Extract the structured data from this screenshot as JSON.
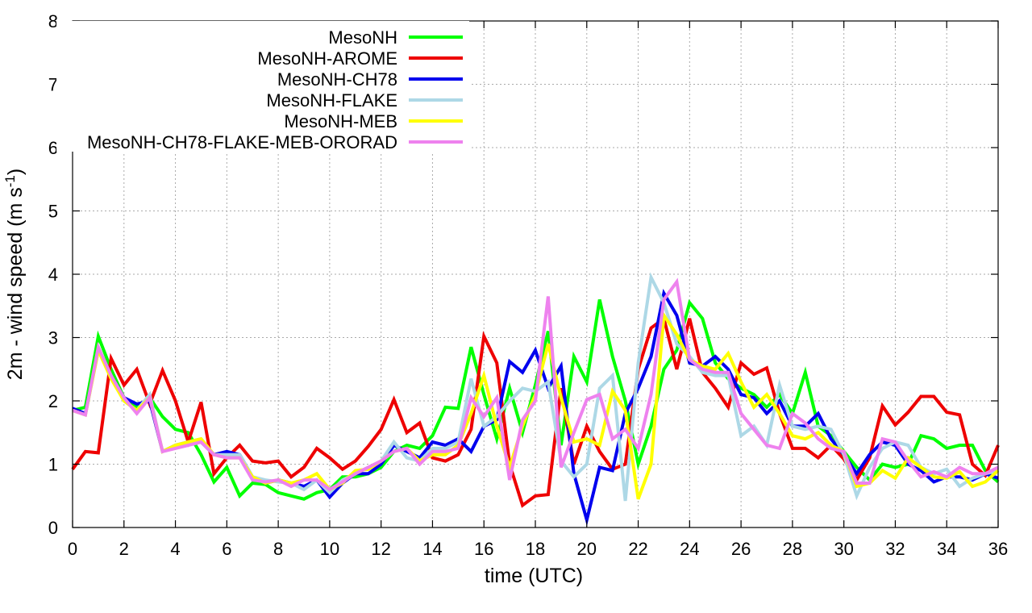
{
  "chart_data": {
    "type": "line",
    "xlabel": "time (UTC)",
    "ylabel_main": "2m - wind speed  (m s",
    "ylabel_sup": "-1",
    "ylabel_end": ")",
    "xlim": [
      0,
      36
    ],
    "ylim": [
      0,
      8
    ],
    "xticks": [
      0,
      2,
      4,
      6,
      8,
      10,
      12,
      14,
      16,
      18,
      20,
      22,
      24,
      26,
      28,
      30,
      32,
      34,
      36
    ],
    "yticks": [
      0,
      1,
      2,
      3,
      4,
      5,
      6,
      7,
      8
    ],
    "grid": true,
    "legend_position": "top-left",
    "x": [
      0,
      0.5,
      1,
      1.5,
      2,
      2.5,
      3,
      3.5,
      4,
      4.5,
      5,
      5.5,
      6,
      6.5,
      7,
      7.5,
      8,
      8.5,
      9,
      9.5,
      10,
      10.5,
      11,
      11.5,
      12,
      12.5,
      13,
      13.5,
      14,
      14.5,
      15,
      15.5,
      16,
      16.5,
      17,
      17.5,
      18,
      18.5,
      19,
      19.5,
      20,
      20.5,
      21,
      21.5,
      22,
      22.5,
      23,
      23.5,
      24,
      24.5,
      25,
      25.5,
      26,
      26.5,
      27,
      27.5,
      28,
      28.5,
      29,
      29.5,
      30,
      30.5,
      31,
      31.5,
      32,
      32.5,
      33,
      33.5,
      34,
      34.5,
      35,
      35.5,
      36
    ],
    "series": [
      {
        "name": "MesoNH",
        "color": "#00ff00",
        "values": [
          1.85,
          1.9,
          3.02,
          2.5,
          2.05,
          1.9,
          2.05,
          1.75,
          1.55,
          1.5,
          1.15,
          0.72,
          0.95,
          0.5,
          0.7,
          0.68,
          0.55,
          0.5,
          0.45,
          0.55,
          0.6,
          0.8,
          0.8,
          0.85,
          0.95,
          1.2,
          1.3,
          1.25,
          1.45,
          1.9,
          1.88,
          2.85,
          2.1,
          1.4,
          2.2,
          1.5,
          2.25,
          3.1,
          1.3,
          2.7,
          2.3,
          3.6,
          2.7,
          2.0,
          1.0,
          1.6,
          2.5,
          2.8,
          3.55,
          3.3,
          2.6,
          2.35,
          2.2,
          2.1,
          1.9,
          2.1,
          1.8,
          2.45,
          1.6,
          1.45,
          1.2,
          0.95,
          0.75,
          1.0,
          0.95,
          1.0,
          1.45,
          1.4,
          1.25,
          1.3,
          1.3,
          0.9,
          0.72
        ]
      },
      {
        "name": "MesoNH-AROME",
        "color": "#ee0000",
        "values": [
          0.92,
          1.2,
          1.18,
          2.67,
          2.25,
          2.5,
          1.95,
          2.48,
          2.0,
          1.35,
          1.98,
          0.85,
          1.1,
          1.3,
          1.05,
          1.02,
          1.05,
          0.8,
          0.95,
          1.25,
          1.1,
          0.92,
          1.05,
          1.28,
          1.55,
          2.02,
          1.5,
          1.65,
          1.1,
          1.05,
          1.15,
          1.55,
          3.02,
          2.6,
          1.0,
          0.35,
          0.5,
          0.52,
          2.2,
          1.0,
          1.6,
          1.2,
          0.92,
          1.0,
          2.5,
          3.15,
          3.3,
          2.5,
          3.3,
          2.45,
          2.2,
          1.9,
          2.6,
          2.42,
          2.52,
          1.8,
          1.25,
          1.25,
          1.1,
          1.3,
          1.08,
          0.75,
          1.1,
          1.92,
          1.62,
          1.82,
          2.07,
          2.07,
          1.82,
          1.78,
          1.0,
          0.82,
          1.3
        ]
      },
      {
        "name": "MesoNH-CH78",
        "color": "#0000ee",
        "values": [
          1.88,
          1.8,
          2.8,
          2.4,
          2.05,
          1.95,
          2.0,
          1.2,
          1.3,
          1.35,
          1.35,
          1.15,
          1.2,
          1.15,
          0.8,
          0.7,
          0.75,
          0.7,
          0.65,
          0.75,
          0.48,
          0.7,
          0.85,
          0.85,
          1.0,
          1.3,
          1.2,
          1.1,
          1.35,
          1.3,
          1.4,
          1.2,
          1.6,
          1.7,
          2.62,
          2.45,
          2.8,
          2.2,
          2.55,
          0.85,
          0.12,
          0.95,
          0.9,
          1.8,
          2.2,
          2.7,
          3.7,
          3.35,
          2.6,
          2.55,
          2.7,
          2.5,
          2.1,
          2.05,
          1.8,
          2.0,
          1.6,
          1.6,
          1.8,
          1.4,
          1.15,
          0.85,
          1.15,
          1.35,
          1.3,
          1.0,
          0.9,
          0.72,
          0.8,
          0.8,
          0.75,
          0.85,
          0.78
        ]
      },
      {
        "name": "MesoNH-FLAKE",
        "color": "#add8e6",
        "values": [
          1.85,
          1.78,
          2.8,
          2.4,
          2.0,
          1.85,
          2.1,
          1.2,
          1.3,
          1.35,
          1.4,
          1.15,
          1.15,
          1.15,
          0.8,
          0.75,
          0.72,
          0.7,
          0.6,
          0.75,
          0.55,
          0.75,
          0.85,
          0.95,
          1.05,
          1.35,
          1.1,
          1.05,
          1.25,
          1.25,
          1.35,
          2.35,
          1.6,
          1.75,
          2.0,
          2.2,
          2.15,
          2.3,
          1.05,
          0.8,
          1.0,
          2.2,
          2.4,
          0.42,
          2.6,
          3.95,
          3.55,
          2.9,
          2.7,
          2.45,
          2.4,
          2.4,
          1.45,
          1.6,
          1.3,
          2.25,
          1.6,
          1.55,
          1.6,
          1.55,
          1.15,
          0.5,
          0.95,
          1.25,
          1.35,
          1.3,
          0.95,
          0.85,
          0.92,
          0.65,
          0.78,
          0.85,
          0.9
        ]
      },
      {
        "name": "MesoNH-MEB",
        "color": "#ffff00",
        "values": [
          1.85,
          1.78,
          2.8,
          2.35,
          2.0,
          1.85,
          2.05,
          1.2,
          1.3,
          1.35,
          1.4,
          1.15,
          1.1,
          1.1,
          0.8,
          0.7,
          0.75,
          0.7,
          0.75,
          0.85,
          0.6,
          0.7,
          0.9,
          0.92,
          1.05,
          1.2,
          1.25,
          1.05,
          1.15,
          1.15,
          1.3,
          1.8,
          2.4,
          1.6,
          0.95,
          1.6,
          2.1,
          2.9,
          2.05,
          1.35,
          1.4,
          1.3,
          2.15,
          1.85,
          0.45,
          1.0,
          3.35,
          3.05,
          2.65,
          2.55,
          2.5,
          2.75,
          2.3,
          1.9,
          2.1,
          1.8,
          1.45,
          1.4,
          1.5,
          1.3,
          1.2,
          0.65,
          0.7,
          0.9,
          0.78,
          1.1,
          0.95,
          0.8,
          0.78,
          0.88,
          0.65,
          0.72,
          0.9
        ]
      },
      {
        "name": "MesoNH-CH78-FLAKE-MEB-ORORAD",
        "color": "#ee82ee",
        "values": [
          1.85,
          1.78,
          2.85,
          2.4,
          2.05,
          1.8,
          2.05,
          1.2,
          1.25,
          1.3,
          1.35,
          1.15,
          1.1,
          1.1,
          0.75,
          0.72,
          0.75,
          0.65,
          0.75,
          0.75,
          0.6,
          0.72,
          0.85,
          0.95,
          1.05,
          1.2,
          1.25,
          1.0,
          1.2,
          1.2,
          1.25,
          2.05,
          1.75,
          2.05,
          0.75,
          1.7,
          2.0,
          3.65,
          0.95,
          1.5,
          2.02,
          2.1,
          1.4,
          1.55,
          1.25,
          2.1,
          3.6,
          3.88,
          2.65,
          2.5,
          2.45,
          2.45,
          1.8,
          1.55,
          1.3,
          1.25,
          1.8,
          1.65,
          1.4,
          1.25,
          1.2,
          0.7,
          0.7,
          1.4,
          1.35,
          1.05,
          0.8,
          0.88,
          0.8,
          0.95,
          0.85,
          0.85,
          0.95
        ]
      }
    ]
  }
}
